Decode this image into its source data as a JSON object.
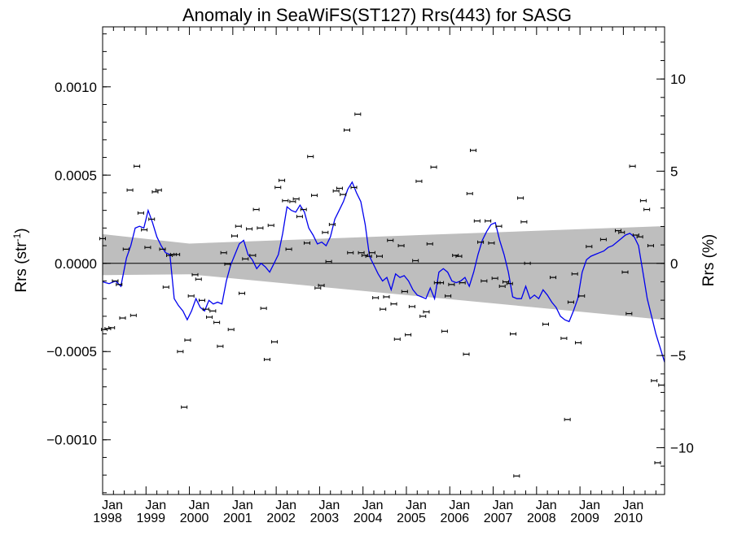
{
  "chart_data": {
    "type": "scatter",
    "title": "Anomaly in SeaWiFS(ST127) Rrs(443) for SASG",
    "ylabel_left": "Rrs (str",
    "ylabel_left_sup": "-1",
    "ylabel_left_end": ")",
    "ylabel_right": "Rrs (%)",
    "xlim": [
      1998.0,
      2010.95
    ],
    "ylim_left": [
      -0.00131,
      0.00134
    ],
    "ylim_right": [
      -12.54,
      12.83
    ],
    "grid": false,
    "x_ticks": [
      {
        "month": "Jan",
        "year": "1998",
        "x": 1998.0
      },
      {
        "month": "Jan",
        "year": "1999",
        "x": 1999.0
      },
      {
        "month": "Jan",
        "year": "2000",
        "x": 2000.0
      },
      {
        "month": "Jan",
        "year": "2001",
        "x": 2001.0
      },
      {
        "month": "Jan",
        "year": "2002",
        "x": 2002.0
      },
      {
        "month": "Jan",
        "year": "2003",
        "x": 2003.0
      },
      {
        "month": "Jan",
        "year": "2004",
        "x": 2004.0
      },
      {
        "month": "Jan",
        "year": "2005",
        "x": 2005.0
      },
      {
        "month": "Jan",
        "year": "2006",
        "x": 2006.0
      },
      {
        "month": "Jan",
        "year": "2007",
        "x": 2007.0
      },
      {
        "month": "Jan",
        "year": "2008",
        "x": 2008.0
      },
      {
        "month": "Jan",
        "year": "2009",
        "x": 2009.0
      },
      {
        "month": "Jan",
        "year": "2010",
        "x": 2010.0
      }
    ],
    "y_ticks_left": [
      {
        "value": 0.001,
        "label": "0.0010"
      },
      {
        "value": 0.0005,
        "label": "0.0005"
      },
      {
        "value": 0.0,
        "label": "0.0000"
      },
      {
        "value": -0.0005,
        "label": "−0.0005"
      },
      {
        "value": -0.001,
        "label": "−0.0010"
      }
    ],
    "y_ticks_right": [
      {
        "value": 10,
        "label": "10"
      },
      {
        "value": 5,
        "label": "5"
      },
      {
        "value": 0,
        "label": "0"
      },
      {
        "value": -5,
        "label": "−5"
      },
      {
        "value": -10,
        "label": "−10"
      }
    ],
    "band": {
      "x": [
        1998.0,
        2000.0,
        2010.95
      ],
      "upper": [
        0.000165,
        0.000112,
        0.000211
      ],
      "lower": [
        -6.7e-05,
        -6.2e-05,
        -0.00032
      ]
    },
    "points": [
      {
        "x": 1998.0,
        "y": 0.00014
      },
      {
        "x": 1998.04,
        "y": -0.000375
      },
      {
        "x": 1998.12,
        "y": -0.00037
      },
      {
        "x": 1998.21,
        "y": -0.000365
      },
      {
        "x": 1998.29,
        "y": -0.0001
      },
      {
        "x": 1998.38,
        "y": -0.00012
      },
      {
        "x": 1998.46,
        "y": -0.00031
      },
      {
        "x": 1998.54,
        "y": 8e-05
      },
      {
        "x": 1998.63,
        "y": 0.000415
      },
      {
        "x": 1998.71,
        "y": -0.000295
      },
      {
        "x": 1998.79,
        "y": 0.00055
      },
      {
        "x": 1998.88,
        "y": 0.000285
      },
      {
        "x": 1998.96,
        "y": 0.00019
      },
      {
        "x": 1999.04,
        "y": 9e-05
      },
      {
        "x": 1999.13,
        "y": 0.00025
      },
      {
        "x": 1999.21,
        "y": 0.000405
      },
      {
        "x": 1999.29,
        "y": 0.000415
      },
      {
        "x": 1999.38,
        "y": 8e-05
      },
      {
        "x": 1999.46,
        "y": -0.000135
      },
      {
        "x": 1999.54,
        "y": 4.5e-05
      },
      {
        "x": 1999.63,
        "y": 5e-05
      },
      {
        "x": 1999.71,
        "y": 5e-05
      },
      {
        "x": 1999.79,
        "y": -0.0005
      },
      {
        "x": 1999.88,
        "y": -0.000815
      },
      {
        "x": 1999.96,
        "y": -0.000435
      },
      {
        "x": 2000.04,
        "y": -0.000185
      },
      {
        "x": 2000.13,
        "y": -6.5e-05
      },
      {
        "x": 2000.21,
        "y": -9e-05
      },
      {
        "x": 2000.29,
        "y": -0.00021
      },
      {
        "x": 2000.38,
        "y": -0.00026
      },
      {
        "x": 2000.46,
        "y": -0.000305
      },
      {
        "x": 2000.54,
        "y": -0.00027
      },
      {
        "x": 2000.63,
        "y": -0.000335
      },
      {
        "x": 2000.71,
        "y": -0.00047
      },
      {
        "x": 2000.79,
        "y": 6e-05
      },
      {
        "x": 2000.88,
        "y": -5e-06
      },
      {
        "x": 2000.96,
        "y": -0.000375
      },
      {
        "x": 2001.04,
        "y": 0.000155
      },
      {
        "x": 2001.13,
        "y": 0.00021
      },
      {
        "x": 2001.21,
        "y": -0.00017
      },
      {
        "x": 2001.29,
        "y": 2.5e-05
      },
      {
        "x": 2001.38,
        "y": 0.000195
      },
      {
        "x": 2001.46,
        "y": 4.5e-05
      },
      {
        "x": 2001.54,
        "y": 0.000305
      },
      {
        "x": 2001.63,
        "y": 0.0002
      },
      {
        "x": 2001.71,
        "y": -0.000255
      },
      {
        "x": 2001.79,
        "y": -0.000545
      },
      {
        "x": 2001.88,
        "y": 0.000215
      },
      {
        "x": 2001.96,
        "y": -0.000445
      },
      {
        "x": 2002.04,
        "y": 0.00043
      },
      {
        "x": 2002.13,
        "y": 0.00047
      },
      {
        "x": 2002.21,
        "y": 0.000355
      },
      {
        "x": 2002.29,
        "y": 8e-05
      },
      {
        "x": 2002.38,
        "y": 0.00035
      },
      {
        "x": 2002.46,
        "y": 0.000365
      },
      {
        "x": 2002.54,
        "y": 0.000265
      },
      {
        "x": 2002.63,
        "y": 0.000305
      },
      {
        "x": 2002.71,
        "y": 0.000115
      },
      {
        "x": 2002.79,
        "y": 0.000605
      },
      {
        "x": 2002.88,
        "y": 0.000385
      },
      {
        "x": 2002.96,
        "y": -0.00014
      },
      {
        "x": 2003.04,
        "y": -0.000125
      },
      {
        "x": 2003.13,
        "y": 0.000175
      },
      {
        "x": 2003.21,
        "y": 1e-05
      },
      {
        "x": 2003.29,
        "y": 0.00022
      },
      {
        "x": 2003.38,
        "y": 0.00041
      },
      {
        "x": 2003.46,
        "y": 0.000425
      },
      {
        "x": 2003.54,
        "y": 0.00039
      },
      {
        "x": 2003.63,
        "y": 0.000755
      },
      {
        "x": 2003.71,
        "y": 6e-05
      },
      {
        "x": 2003.79,
        "y": 0.00043
      },
      {
        "x": 2003.88,
        "y": 0.000845
      },
      {
        "x": 2003.96,
        "y": 6e-05
      },
      {
        "x": 2004.04,
        "y": 4.5e-05
      },
      {
        "x": 2004.13,
        "y": 4e-05
      },
      {
        "x": 2004.21,
        "y": 6e-05
      },
      {
        "x": 2004.29,
        "y": -0.000195
      },
      {
        "x": 2004.38,
        "y": 4e-05
      },
      {
        "x": 2004.46,
        "y": -0.00026
      },
      {
        "x": 2004.54,
        "y": -0.00019
      },
      {
        "x": 2004.63,
        "y": 0.00013
      },
      {
        "x": 2004.71,
        "y": -0.00023
      },
      {
        "x": 2004.79,
        "y": -0.00043
      },
      {
        "x": 2004.88,
        "y": 0.0001
      },
      {
        "x": 2004.96,
        "y": -0.00016
      },
      {
        "x": 2005.04,
        "y": -0.000405
      },
      {
        "x": 2005.13,
        "y": -0.000245
      },
      {
        "x": 2005.21,
        "y": 1.5e-05
      },
      {
        "x": 2005.29,
        "y": 0.000465
      },
      {
        "x": 2005.38,
        "y": -0.0003
      },
      {
        "x": 2005.46,
        "y": -0.000275
      },
      {
        "x": 2005.54,
        "y": 0.00011
      },
      {
        "x": 2005.63,
        "y": 0.000545
      },
      {
        "x": 2005.71,
        "y": -0.00011
      },
      {
        "x": 2005.79,
        "y": -0.00011
      },
      {
        "x": 2005.88,
        "y": -0.000385
      },
      {
        "x": 2005.96,
        "y": -0.000185
      },
      {
        "x": 2006.04,
        "y": -0.00012
      },
      {
        "x": 2006.13,
        "y": 4.5e-05
      },
      {
        "x": 2006.21,
        "y": 4e-05
      },
      {
        "x": 2006.29,
        "y": -0.00011
      },
      {
        "x": 2006.38,
        "y": -0.000515
      },
      {
        "x": 2006.46,
        "y": 0.000395
      },
      {
        "x": 2006.54,
        "y": 0.00064
      },
      {
        "x": 2006.63,
        "y": 0.00024
      },
      {
        "x": 2006.71,
        "y": 0.00012
      },
      {
        "x": 2006.79,
        "y": -0.0001
      },
      {
        "x": 2006.88,
        "y": 0.00024
      },
      {
        "x": 2006.96,
        "y": 0.000115
      },
      {
        "x": 2007.04,
        "y": -8.5e-05
      },
      {
        "x": 2007.13,
        "y": 0.00021
      },
      {
        "x": 2007.21,
        "y": -0.00013
      },
      {
        "x": 2007.29,
        "y": -0.000105
      },
      {
        "x": 2007.38,
        "y": -0.000115
      },
      {
        "x": 2007.46,
        "y": -0.0004
      },
      {
        "x": 2007.54,
        "y": -0.001205
      },
      {
        "x": 2007.63,
        "y": 0.00037
      },
      {
        "x": 2007.71,
        "y": 0.000235
      },
      {
        "x": 2007.79,
        "y": 0.0
      },
      {
        "x": 2008.21,
        "y": -0.000345
      },
      {
        "x": 2008.38,
        "y": -8e-05
      },
      {
        "x": 2008.63,
        "y": -0.000425
      },
      {
        "x": 2008.71,
        "y": -0.000885
      },
      {
        "x": 2008.79,
        "y": -0.00022
      },
      {
        "x": 2008.88,
        "y": -6e-05
      },
      {
        "x": 2008.96,
        "y": -0.00045
      },
      {
        "x": 2009.04,
        "y": -0.000185
      },
      {
        "x": 2009.21,
        "y": 9.5e-05
      },
      {
        "x": 2009.54,
        "y": 0.000135
      },
      {
        "x": 2009.88,
        "y": 0.000185
      },
      {
        "x": 2009.96,
        "y": 0.000175
      },
      {
        "x": 2010.04,
        "y": -5e-05
      },
      {
        "x": 2010.13,
        "y": -0.000285
      },
      {
        "x": 2010.21,
        "y": 0.00055
      },
      {
        "x": 2010.29,
        "y": 0.00016
      },
      {
        "x": 2010.38,
        "y": 0.00015
      },
      {
        "x": 2010.46,
        "y": 0.000355
      },
      {
        "x": 2010.54,
        "y": 0.000305
      },
      {
        "x": 2010.63,
        "y": 0.0001
      },
      {
        "x": 2010.71,
        "y": -0.000665
      },
      {
        "x": 2010.79,
        "y": -0.00113
      },
      {
        "x": 2010.88,
        "y": -0.00069
      }
    ],
    "smooth_line": {
      "color": "#0000ee",
      "x": [
        1998.0,
        1998.15,
        1998.3,
        1998.42,
        1998.55,
        1998.65,
        1998.75,
        1998.85,
        1998.95,
        1999.05,
        1999.15,
        1999.25,
        1999.35,
        1999.45,
        1999.55,
        1999.65,
        1999.75,
        1999.85,
        1999.95,
        2000.05,
        2000.15,
        2000.25,
        2000.35,
        2000.45,
        2000.55,
        2000.65,
        2000.75,
        2000.85,
        2000.95,
        2001.05,
        2001.15,
        2001.25,
        2001.35,
        2001.45,
        2001.55,
        2001.65,
        2001.75,
        2001.85,
        2001.95,
        2002.05,
        2002.15,
        2002.25,
        2002.35,
        2002.45,
        2002.55,
        2002.65,
        2002.75,
        2002.85,
        2002.95,
        2003.05,
        2003.15,
        2003.25,
        2003.35,
        2003.45,
        2003.55,
        2003.65,
        2003.75,
        2003.85,
        2003.95,
        2004.05,
        2004.15,
        2004.25,
        2004.35,
        2004.45,
        2004.55,
        2004.65,
        2004.75,
        2004.85,
        2004.95,
        2005.05,
        2005.15,
        2005.25,
        2005.35,
        2005.45,
        2005.55,
        2005.65,
        2005.75,
        2005.85,
        2005.95,
        2006.05,
        2006.15,
        2006.25,
        2006.35,
        2006.45,
        2006.55,
        2006.65,
        2006.75,
        2006.85,
        2006.95,
        2007.05,
        2007.15,
        2007.25,
        2007.35,
        2007.45,
        2007.55,
        2007.65,
        2007.75,
        2007.85,
        2007.95,
        2008.05,
        2008.15,
        2008.25,
        2008.35,
        2008.45,
        2008.55,
        2008.65,
        2008.75,
        2008.85,
        2008.95,
        2009.05,
        2009.15,
        2009.25,
        2009.35,
        2009.45,
        2009.55,
        2009.65,
        2009.75,
        2009.85,
        2009.95,
        2010.05,
        2010.15,
        2010.25,
        2010.35,
        2010.45,
        2010.55,
        2010.65,
        2010.75,
        2010.85,
        2010.95
      ],
      "y": [
        -0.000105,
        -0.000115,
        -0.0001,
        -0.00013,
        3e-05,
        0.0001,
        0.0002,
        0.00021,
        0.0002,
        0.0003,
        0.00023,
        0.00015,
        0.0001,
        6e-05,
        5e-05,
        -0.0002,
        -0.00024,
        -0.00027,
        -0.00032,
        -0.00027,
        -0.0002,
        -0.00025,
        -0.00027,
        -0.00021,
        -0.00023,
        -0.00022,
        -0.00023,
        -0.0001,
        -1e-05,
        5e-05,
        0.00011,
        0.00013,
        5e-05,
        2e-05,
        -3e-05,
        0.0,
        -2e-05,
        -5e-05,
        0.0,
        5e-05,
        0.00017,
        0.00032,
        0.0003,
        0.00029,
        0.00033,
        0.00029,
        0.0002,
        0.00016,
        0.00011,
        0.00012,
        0.0001,
        0.00015,
        0.00025,
        0.0003,
        0.00035,
        0.00042,
        0.00046,
        0.0004,
        0.00035,
        0.00022,
        4e-05,
        -1e-05,
        -6e-05,
        -0.0001,
        -8e-05,
        -0.00015,
        -6e-05,
        -8e-05,
        -7e-05,
        -0.0001,
        -0.00015,
        -0.00018,
        -0.00019,
        -0.0002,
        -0.00014,
        -0.0002,
        -5e-05,
        -3e-05,
        -5e-05,
        -0.0001,
        -0.00011,
        -0.0001,
        -8e-05,
        -0.00013,
        -5e-05,
        5e-05,
        0.00013,
        0.00018,
        0.00022,
        0.00023,
        0.00013,
        5e-05,
        -5e-05,
        -0.00019,
        -0.0002,
        -0.0002,
        -0.00013,
        -0.0002,
        -0.00018,
        -0.0002,
        -0.00015,
        -0.00018,
        -0.00022,
        -0.00025,
        -0.0003,
        -0.00032,
        -0.00033,
        -0.00027,
        -0.0002,
        -5e-05,
        2e-05,
        4e-05,
        5e-05,
        6e-05,
        7e-05,
        9e-05,
        0.0001,
        0.00012,
        0.00014,
        0.00016,
        0.00017,
        0.00015,
        0.0001,
        -5e-05,
        -0.0002,
        -0.0003,
        -0.0004,
        -0.00048,
        -0.00056
      ]
    }
  }
}
